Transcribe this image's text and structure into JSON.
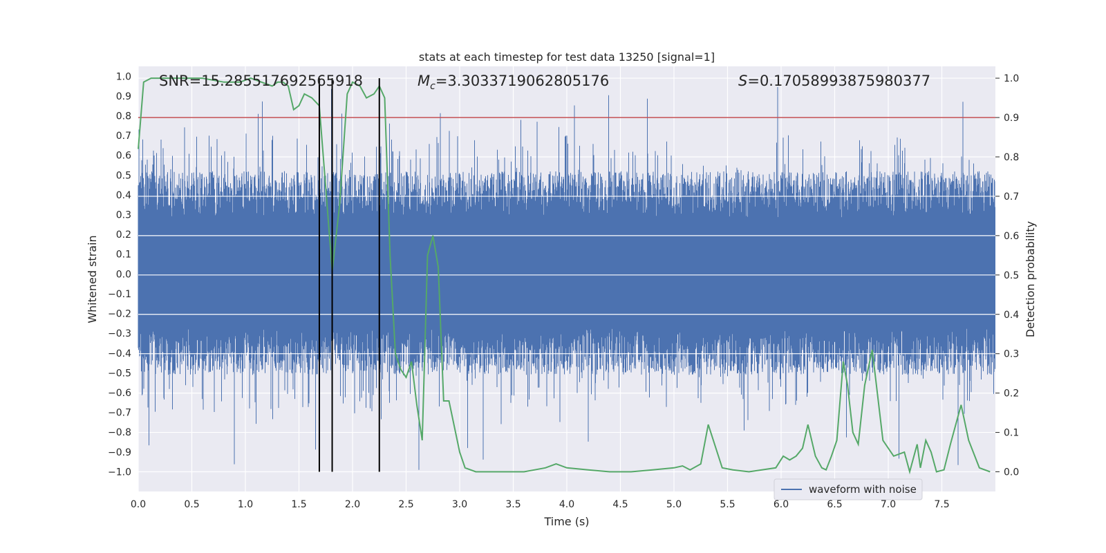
{
  "chart_data": {
    "type": "line",
    "title": "stats at each timestep for test data 13250 [signal=1]",
    "xlabel": "Time (s)",
    "ylabel": "Whitened strain",
    "y2label": "Detection probability",
    "xlim": [
      0.0,
      8.0
    ],
    "ylim": [
      -1.1,
      1.05
    ],
    "y2lim": [
      -0.05,
      1.03
    ],
    "xticks": [
      "0.0",
      "0.5",
      "1.0",
      "1.5",
      "2.0",
      "2.5",
      "3.0",
      "3.5",
      "4.0",
      "4.5",
      "5.0",
      "5.5",
      "6.0",
      "6.5",
      "7.0",
      "7.5"
    ],
    "yticks": [
      "1.0",
      "0.9",
      "0.8",
      "0.7",
      "0.6",
      "0.5",
      "0.4",
      "0.3",
      "0.2",
      "0.1",
      "0.0",
      "-0.1",
      "-0.2",
      "-0.3",
      "-0.4",
      "-0.5",
      "-0.6",
      "-0.7",
      "-0.8",
      "-0.9",
      "-1.0"
    ],
    "y2ticks": [
      "1.0",
      "0.9",
      "0.8",
      "0.7",
      "0.6",
      "0.5",
      "0.4",
      "0.3",
      "0.2",
      "0.1",
      "0.0"
    ],
    "grid": true,
    "legend": {
      "placement": "lower-right",
      "entries": [
        "waveform with noise"
      ]
    },
    "annotations": {
      "snr": "SNR=15.285517692565918",
      "mc_symbol": "M",
      "mc_subscript": "c",
      "mc_value": "=3.3033719062805176",
      "s_symbol": "S",
      "s_value": "=0.17058993875980377"
    },
    "threshold_line": {
      "axis": "right",
      "y": 0.9
    },
    "vertical_lines_x": [
      1.69,
      1.81,
      2.25
    ],
    "series": [
      {
        "name": "waveform with noise",
        "axis": "left",
        "kind": "noise-envelope",
        "typical_range": [
          -0.45,
          0.5
        ],
        "extreme_range": [
          -1.0,
          0.95
        ]
      },
      {
        "axis": "right",
        "x": [
          0.0,
          0.05,
          0.12,
          0.25,
          0.45,
          0.6,
          0.8,
          0.95,
          1.05,
          1.15,
          1.25,
          1.3,
          1.35,
          1.4,
          1.45,
          1.5,
          1.55,
          1.62,
          1.69,
          1.75,
          1.81,
          1.88,
          1.95,
          2.0,
          2.07,
          2.13,
          2.2,
          2.25,
          2.3,
          2.35,
          2.4,
          2.45,
          2.5,
          2.55,
          2.6,
          2.65,
          2.7,
          2.75,
          2.8,
          2.85,
          2.9,
          3.0,
          3.05,
          3.15,
          3.3,
          3.45,
          3.6,
          3.7,
          3.8,
          3.9,
          4.0,
          4.2,
          4.4,
          4.6,
          4.8,
          5.0,
          5.08,
          5.15,
          5.25,
          5.32,
          5.45,
          5.55,
          5.7,
          5.82,
          5.95,
          6.02,
          6.08,
          6.14,
          6.2,
          6.25,
          6.32,
          6.38,
          6.42,
          6.47,
          6.52,
          6.58,
          6.62,
          6.67,
          6.72,
          6.78,
          6.85,
          6.95,
          7.05,
          7.15,
          7.2,
          7.27,
          7.3,
          7.35,
          7.4,
          7.45,
          7.52,
          7.58,
          7.68,
          7.75,
          7.85,
          7.95
        ],
        "values": [
          0.82,
          0.99,
          1.0,
          1.0,
          1.0,
          1.0,
          0.99,
          0.99,
          1.0,
          0.99,
          0.98,
          0.99,
          0.99,
          0.98,
          0.92,
          0.93,
          0.96,
          0.95,
          0.93,
          0.72,
          0.51,
          0.68,
          0.96,
          0.99,
          0.98,
          0.95,
          0.96,
          0.98,
          0.95,
          0.55,
          0.3,
          0.26,
          0.24,
          0.28,
          0.17,
          0.08,
          0.55,
          0.6,
          0.52,
          0.18,
          0.18,
          0.05,
          0.01,
          0.0,
          0.0,
          0.0,
          0.0,
          0.005,
          0.01,
          0.02,
          0.01,
          0.005,
          0.0,
          0.0,
          0.005,
          0.01,
          0.015,
          0.005,
          0.02,
          0.12,
          0.01,
          0.005,
          0.0,
          0.005,
          0.01,
          0.04,
          0.03,
          0.04,
          0.06,
          0.12,
          0.04,
          0.01,
          0.005,
          0.04,
          0.08,
          0.28,
          0.22,
          0.1,
          0.07,
          0.22,
          0.31,
          0.08,
          0.04,
          0.05,
          0.0,
          0.07,
          0.01,
          0.08,
          0.05,
          0.0,
          0.005,
          0.07,
          0.17,
          0.08,
          0.01,
          0.0
        ]
      }
    ],
    "colors": {
      "plot_background": "#eaeaf2",
      "grid": "#ffffff",
      "waveform": "#4c72b0",
      "probability": "#55a868",
      "threshold": "#c44e52",
      "markers": "#000000",
      "text": "#262626"
    }
  }
}
